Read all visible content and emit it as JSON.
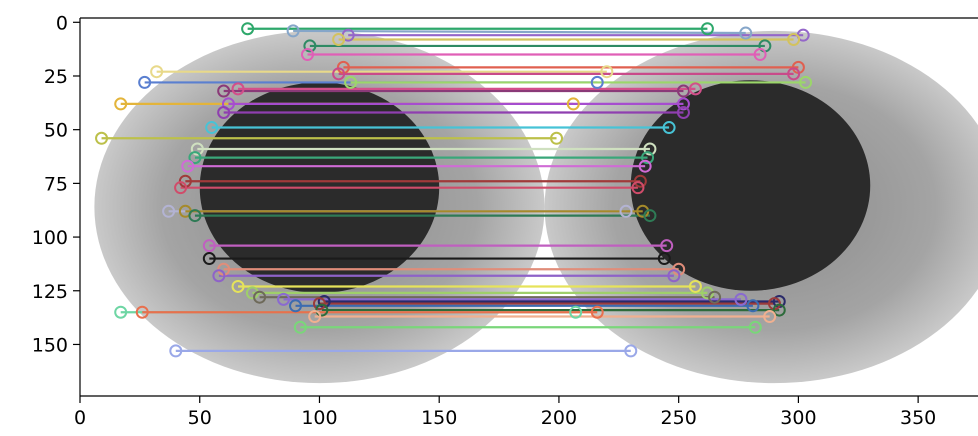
{
  "chart_data": {
    "type": "scatter",
    "title": "",
    "xlabel": "",
    "ylabel": "",
    "xlim": [
      0,
      375
    ],
    "ylim": [
      174,
      -2
    ],
    "y_inverted": true,
    "grid": false,
    "x_ticks": [
      0,
      50,
      100,
      150,
      200,
      250,
      300,
      350
    ],
    "y_ticks": [
      0,
      25,
      50,
      75,
      100,
      125,
      150
    ],
    "x_tick_labels": [
      "0",
      "50",
      "100",
      "150",
      "200",
      "250",
      "300",
      "350"
    ],
    "y_tick_labels": [
      "0",
      "25",
      "50",
      "75",
      "100",
      "125",
      "150"
    ],
    "image_content": {
      "left_iris": {
        "center": [
          100,
          86
        ],
        "radius": [
          94,
          82
        ],
        "pupil_center": [
          100,
          77
        ],
        "pupil_radius": [
          50,
          49
        ]
      },
      "right_iris": {
        "center": [
          290,
          86
        ],
        "radius": [
          96,
          82
        ],
        "pupil_center": [
          280,
          76
        ],
        "pupil_radius": [
          50,
          49
        ]
      },
      "iris_color": "#9a9a9a",
      "pupil_color": "#2b2b2b"
    },
    "matches": [
      {
        "p1": [
          70,
          3
        ],
        "p2": [
          262,
          3
        ],
        "color": "#2ea86b"
      },
      {
        "p1": [
          89,
          4
        ],
        "p2": [
          278,
          5
        ],
        "color": "#86a6c9"
      },
      {
        "p1": [
          112,
          6
        ],
        "p2": [
          302,
          6
        ],
        "color": "#9466c9"
      },
      {
        "p1": [
          108,
          8
        ],
        "p2": [
          298,
          8
        ],
        "color": "#d3c25e"
      },
      {
        "p1": [
          96,
          11
        ],
        "p2": [
          286,
          11
        ],
        "color": "#2f8a64"
      },
      {
        "p1": [
          95,
          15
        ],
        "p2": [
          284,
          15
        ],
        "color": "#e05fb6"
      },
      {
        "p1": [
          110,
          21
        ],
        "p2": [
          300,
          21
        ],
        "color": "#e06050"
      },
      {
        "p1": [
          32,
          23
        ],
        "p2": [
          220,
          23
        ],
        "color": "#e8d98a"
      },
      {
        "p1": [
          108,
          24
        ],
        "p2": [
          298,
          24
        ],
        "color": "#c94a8a"
      },
      {
        "p1": [
          27,
          28
        ],
        "p2": [
          216,
          28
        ],
        "color": "#5a7fd0"
      },
      {
        "p1": [
          113,
          28
        ],
        "p2": [
          303,
          28
        ],
        "color": "#9bd66a"
      },
      {
        "p1": [
          60,
          32
        ],
        "p2": [
          252,
          32
        ],
        "color": "#8a3a78"
      },
      {
        "p1": [
          66,
          31
        ],
        "p2": [
          257,
          31
        ],
        "color": "#d34f8a"
      },
      {
        "p1": [
          17,
          38
        ],
        "p2": [
          206,
          38
        ],
        "color": "#e3b43a"
      },
      {
        "p1": [
          62,
          38
        ],
        "p2": [
          252,
          38
        ],
        "color": "#a64dcf"
      },
      {
        "p1": [
          60,
          42
        ],
        "p2": [
          252,
          42
        ],
        "color": "#8f3fb0"
      },
      {
        "p1": [
          55,
          49
        ],
        "p2": [
          246,
          49
        ],
        "color": "#47c3d6"
      },
      {
        "p1": [
          9,
          54
        ],
        "p2": [
          199,
          54
        ],
        "color": "#bcc04a"
      },
      {
        "p1": [
          49,
          59
        ],
        "p2": [
          238,
          59
        ],
        "color": "#cfe0c0"
      },
      {
        "p1": [
          48,
          63
        ],
        "p2": [
          237,
          63
        ],
        "color": "#3aa77a"
      },
      {
        "p1": [
          45,
          67
        ],
        "p2": [
          236,
          67
        ],
        "color": "#d06bd6"
      },
      {
        "p1": [
          44,
          74
        ],
        "p2": [
          234,
          74
        ],
        "color": "#a03a3a"
      },
      {
        "p1": [
          42,
          77
        ],
        "p2": [
          233,
          77
        ],
        "color": "#d04c6a"
      },
      {
        "p1": [
          37,
          88
        ],
        "p2": [
          228,
          88
        ],
        "color": "#b3b3d3"
      },
      {
        "p1": [
          44,
          88
        ],
        "p2": [
          235,
          88
        ],
        "color": "#a58a2a"
      },
      {
        "p1": [
          48,
          90
        ],
        "p2": [
          238,
          90
        ],
        "color": "#2e7a55"
      },
      {
        "p1": [
          54,
          104
        ],
        "p2": [
          245,
          104
        ],
        "color": "#c05fc0"
      },
      {
        "p1": [
          54,
          110
        ],
        "p2": [
          244,
          110
        ],
        "color": "#1b1b1b"
      },
      {
        "p1": [
          60,
          115
        ],
        "p2": [
          250,
          115
        ],
        "color": "#e08d7a"
      },
      {
        "p1": [
          58,
          118
        ],
        "p2": [
          248,
          118
        ],
        "color": "#8e62c8"
      },
      {
        "p1": [
          66,
          123
        ],
        "p2": [
          257,
          123
        ],
        "color": "#e6e35a"
      },
      {
        "p1": [
          72,
          126
        ],
        "p2": [
          262,
          126
        ],
        "color": "#9fcf6a"
      },
      {
        "p1": [
          75,
          128
        ],
        "p2": [
          265,
          128
        ],
        "color": "#6e6a5a"
      },
      {
        "p1": [
          85,
          129
        ],
        "p2": [
          276,
          129
        ],
        "color": "#8a6ad0"
      },
      {
        "p1": [
          102,
          130
        ],
        "p2": [
          292,
          130
        ],
        "color": "#2a2a6a"
      },
      {
        "p1": [
          100,
          131
        ],
        "p2": [
          290,
          131
        ],
        "color": "#9b3b3b"
      },
      {
        "p1": [
          90,
          132
        ],
        "p2": [
          281,
          132
        ],
        "color": "#3b6bb0"
      },
      {
        "p1": [
          101,
          134
        ],
        "p2": [
          292,
          134
        ],
        "color": "#2d6b3b"
      },
      {
        "p1": [
          17,
          135
        ],
        "p2": [
          207,
          135
        ],
        "color": "#6ed6a4"
      },
      {
        "p1": [
          26,
          135
        ],
        "p2": [
          216,
          135
        ],
        "color": "#e8704e"
      },
      {
        "p1": [
          98,
          137
        ],
        "p2": [
          288,
          137
        ],
        "color": "#f0b090"
      },
      {
        "p1": [
          92,
          142
        ],
        "p2": [
          282,
          142
        ],
        "color": "#7ad67a"
      },
      {
        "p1": [
          40,
          153
        ],
        "p2": [
          230,
          153
        ],
        "color": "#9aa8e8"
      }
    ]
  }
}
